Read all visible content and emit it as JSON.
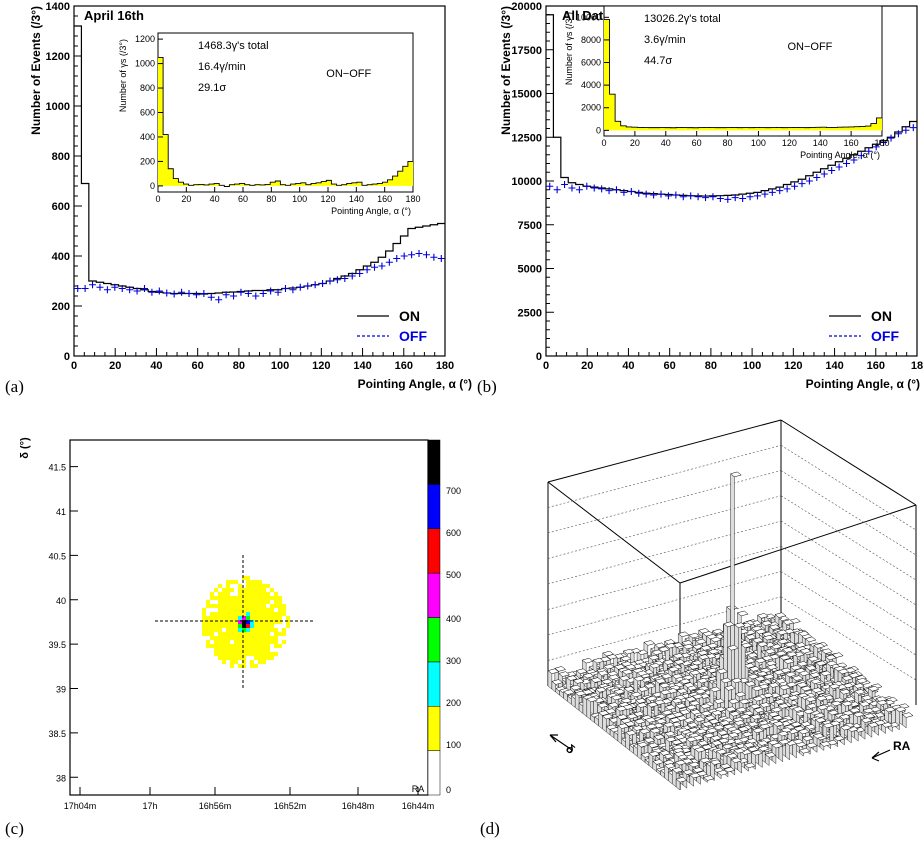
{
  "panel_labels": [
    "(a)",
    "(b)",
    "(c)",
    "(d)"
  ],
  "chart_data": [
    {
      "id": "a",
      "type": "histogram",
      "title": "April 16th",
      "xlabel": "Pointing Angle, α (°)",
      "ylabel": "Number of Events (/3°)",
      "xlim": [
        0,
        180
      ],
      "ylim": [
        0,
        1400
      ],
      "xticks": [
        "0",
        "20",
        "40",
        "60",
        "80",
        "100",
        "120",
        "140",
        "160",
        "180"
      ],
      "yticks": [
        "0",
        "200",
        "400",
        "600",
        "800",
        "1000",
        "1200",
        "1400"
      ],
      "series": [
        {
          "name": "ON",
          "color": "#000000",
          "style": "step-solid",
          "values": [
            1320,
            690,
            300,
            295,
            290,
            285,
            280,
            275,
            270,
            265,
            258,
            255,
            252,
            250,
            250,
            250,
            250,
            248,
            250,
            252,
            255,
            256,
            258,
            260,
            262,
            262,
            265,
            265,
            270,
            272,
            275,
            280,
            285,
            290,
            300,
            310,
            320,
            330,
            345,
            360,
            375,
            395,
            420,
            450,
            480,
            510,
            515,
            520,
            525,
            530
          ]
        },
        {
          "name": "OFF",
          "color": "#0000dd",
          "style": "crosses",
          "values": [
            270,
            270,
            285,
            275,
            265,
            275,
            270,
            265,
            260,
            270,
            255,
            260,
            252,
            248,
            255,
            250,
            245,
            250,
            235,
            225,
            245,
            240,
            255,
            250,
            240,
            250,
            260,
            255,
            270,
            265,
            275,
            280,
            285,
            290,
            300,
            305,
            310,
            320,
            330,
            345,
            355,
            360,
            375,
            390,
            400,
            405,
            410,
            405,
            395,
            390
          ]
        }
      ],
      "inset": {
        "xlabel": "Pointing Angle, α (°)",
        "ylabel": "Number of γs (/3°)",
        "xlim": [
          0,
          180
        ],
        "ylim": [
          -50,
          1250
        ],
        "xticks": [
          "0",
          "20",
          "40",
          "60",
          "80",
          "100",
          "120",
          "140",
          "160",
          "180"
        ],
        "yticks": [
          "0",
          "200",
          "400",
          "600",
          "800",
          "1000",
          "1200"
        ],
        "stats": [
          "1468.3γ's total",
          "16.4γ/min",
          "29.1σ"
        ],
        "label": "ON−OFF",
        "values": [
          1050,
          420,
          140,
          60,
          30,
          15,
          5,
          10,
          12,
          8,
          15,
          20,
          5,
          -5,
          10,
          15,
          20,
          10,
          5,
          10,
          8,
          12,
          30,
          40,
          10,
          5,
          15,
          20,
          25,
          10,
          20,
          25,
          35,
          45,
          15,
          5,
          10,
          20,
          25,
          30,
          5,
          10,
          15,
          20,
          30,
          50,
          80,
          120,
          160,
          200
        ]
      }
    },
    {
      "id": "b",
      "type": "histogram",
      "title": "All Data",
      "xlabel": "Pointing Angle, α (°)",
      "ylabel": "Number of Events (/3°)",
      "xlim": [
        0,
        180
      ],
      "ylim": [
        0,
        20000
      ],
      "xticks": [
        "0",
        "20",
        "40",
        "60",
        "80",
        "100",
        "120",
        "140",
        "160",
        "18"
      ],
      "yticks": [
        "0",
        "2500",
        "5000",
        "7500",
        "10000",
        "12500",
        "15000",
        "17500",
        "20000"
      ],
      "series": [
        {
          "name": "ON",
          "color": "#000000",
          "style": "step-solid",
          "values": [
            19500,
            12500,
            10200,
            9900,
            9800,
            9700,
            9650,
            9600,
            9550,
            9500,
            9450,
            9400,
            9350,
            9300,
            9280,
            9250,
            9230,
            9200,
            9180,
            9160,
            9150,
            9140,
            9150,
            9160,
            9180,
            9200,
            9250,
            9300,
            9350,
            9450,
            9550,
            9650,
            9800,
            9950,
            10100,
            10300,
            10500,
            10700,
            10900,
            11100,
            11300,
            11500,
            11700,
            11900,
            12100,
            12300,
            12500,
            12800,
            13100,
            13400
          ]
        },
        {
          "name": "OFF",
          "color": "#0000dd",
          "style": "crosses",
          "values": [
            9700,
            9500,
            9800,
            9600,
            9500,
            9700,
            9600,
            9550,
            9450,
            9500,
            9350,
            9400,
            9300,
            9250,
            9200,
            9250,
            9150,
            9200,
            9100,
            9150,
            9100,
            9050,
            9100,
            9000,
            8950,
            9050,
            9000,
            9100,
            9150,
            9250,
            9350,
            9450,
            9550,
            9700,
            9850,
            10000,
            10200,
            10400,
            10600,
            10800,
            11000,
            11200,
            11450,
            11700,
            11950,
            12200,
            12450,
            12700,
            12900,
            13050
          ]
        }
      ],
      "inset": {
        "xlabel": "Pointing Angle, α (°)",
        "ylabel": "Number of γs (/3°)",
        "xlim": [
          0,
          180
        ],
        "ylim": [
          -500,
          11000
        ],
        "xticks": [
          "0",
          "20",
          "40",
          "60",
          "80",
          "100",
          "120",
          "140",
          "160",
          "180"
        ],
        "yticks": [
          "0",
          "2000",
          "4000",
          "6000",
          "8000",
          "10000"
        ],
        "stats": [
          "13026.2γ's total",
          "3.6γ/min",
          "44.7σ"
        ],
        "label": "ON−OFF",
        "values": [
          9800,
          3200,
          800,
          400,
          300,
          280,
          260,
          250,
          240,
          240,
          250,
          240,
          230,
          260,
          250,
          240,
          230,
          250,
          260,
          250,
          240,
          240,
          250,
          260,
          240,
          250,
          240,
          260,
          250,
          240,
          250,
          260,
          240,
          250,
          260,
          250,
          240,
          260,
          270,
          280,
          250,
          260,
          280,
          290,
          300,
          320,
          350,
          380,
          600,
          1100
        ]
      }
    },
    {
      "id": "c",
      "type": "heatmap",
      "ylabel": "δ (°)",
      "xlabel": "RA",
      "xticks": [
        "17h04m",
        "17h",
        "16h56m",
        "16h52m",
        "16h48m",
        "16h44m"
      ],
      "yticks": [
        "38",
        "38.5",
        "39",
        "39.5",
        "40",
        "40.5",
        "41",
        "41.5"
      ],
      "ylim": [
        37.8,
        41.8
      ],
      "center": {
        "ra_min": 54.8,
        "dec": 39.76
      },
      "colorbar": {
        "ticks": [
          "0",
          "100",
          "200",
          "300",
          "400",
          "500",
          "600",
          "700"
        ],
        "colors": [
          "#ffffff",
          "#ffff00",
          "#00ffff",
          "#00ff00",
          "#ff00ff",
          "#ff0000",
          "#0000ff",
          "#000000"
        ]
      }
    },
    {
      "id": "d",
      "type": "surface3d",
      "axis_labels": [
        "δ",
        "RA"
      ]
    }
  ]
}
